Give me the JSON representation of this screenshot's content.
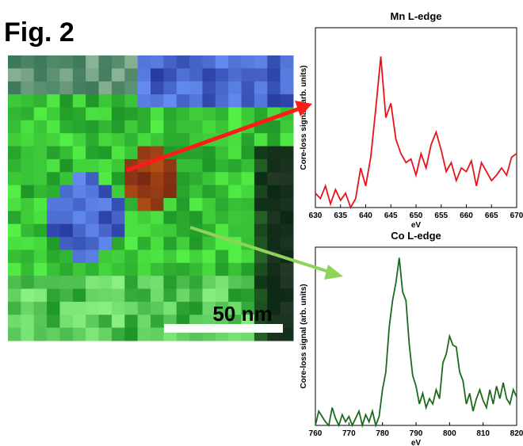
{
  "figure_label": "Fig. 2",
  "scale_bar": "50 nm",
  "chart_data": [
    {
      "type": "line",
      "title": "Mn L-edge",
      "xlabel": "eV",
      "ylabel": "Core-loss signal (arb. units)",
      "color": "#e8141c",
      "x": [
        630,
        631,
        632,
        633,
        634,
        635,
        636,
        637,
        638,
        639,
        640,
        641,
        642,
        643,
        644,
        645,
        646,
        647,
        648,
        649,
        650,
        651,
        652,
        653,
        654,
        655,
        656,
        657,
        658,
        659,
        660,
        661,
        662,
        663,
        664,
        665,
        666,
        667,
        668,
        669,
        670
      ],
      "values": [
        0.08,
        0.05,
        0.12,
        0.02,
        0.1,
        0.04,
        0.08,
        0.0,
        0.05,
        0.22,
        0.12,
        0.28,
        0.55,
        0.84,
        0.5,
        0.58,
        0.38,
        0.3,
        0.25,
        0.27,
        0.18,
        0.3,
        0.22,
        0.35,
        0.42,
        0.32,
        0.2,
        0.25,
        0.15,
        0.22,
        0.2,
        0.26,
        0.12,
        0.25,
        0.2,
        0.15,
        0.18,
        0.22,
        0.18,
        0.28,
        0.3
      ],
      "xlim": [
        630,
        670
      ],
      "xticks": [
        630,
        635,
        640,
        645,
        650,
        655,
        660,
        665,
        670
      ],
      "ylim": [
        0,
        1
      ]
    },
    {
      "type": "line",
      "title": "Co L-edge",
      "xlabel": "eV",
      "ylabel": "Core-loss signal (arb. units)",
      "color": "#1e6a1e",
      "x": [
        760,
        761,
        762,
        763,
        764,
        765,
        766,
        767,
        768,
        769,
        770,
        771,
        772,
        773,
        774,
        775,
        776,
        777,
        778,
        779,
        780,
        781,
        782,
        783,
        784,
        785,
        786,
        787,
        788,
        789,
        790,
        791,
        792,
        793,
        794,
        795,
        796,
        797,
        798,
        799,
        800,
        801,
        802,
        803,
        804,
        805,
        806,
        807,
        808,
        809,
        810,
        811,
        812,
        813,
        814,
        815,
        816,
        817,
        818,
        819,
        820
      ],
      "values": [
        0.0,
        0.08,
        0.05,
        0.02,
        0.0,
        0.1,
        0.04,
        0.0,
        0.06,
        0.02,
        0.05,
        0.0,
        0.04,
        0.08,
        0.0,
        0.06,
        0.02,
        0.08,
        0.0,
        0.05,
        0.2,
        0.3,
        0.55,
        0.7,
        0.8,
        0.94,
        0.75,
        0.7,
        0.45,
        0.28,
        0.22,
        0.12,
        0.18,
        0.1,
        0.15,
        0.12,
        0.2,
        0.15,
        0.35,
        0.4,
        0.5,
        0.45,
        0.44,
        0.3,
        0.25,
        0.12,
        0.18,
        0.08,
        0.15,
        0.2,
        0.14,
        0.1,
        0.2,
        0.12,
        0.22,
        0.15,
        0.24,
        0.15,
        0.12,
        0.2,
        0.16
      ],
      "xlim": [
        760,
        820
      ],
      "xticks": [
        760,
        770,
        780,
        790,
        800,
        810,
        820
      ],
      "ylim": [
        0,
        1
      ]
    }
  ]
}
